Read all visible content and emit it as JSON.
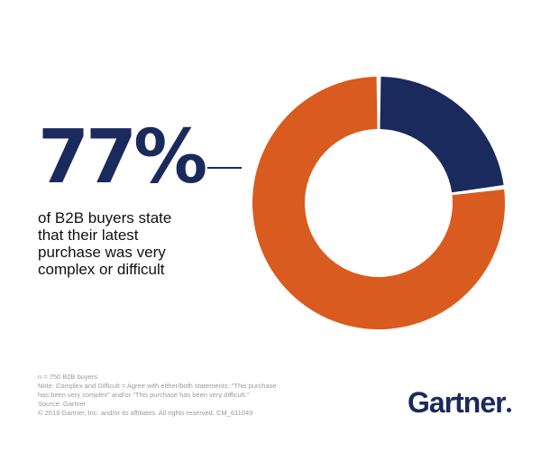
{
  "stat": {
    "value": "77%",
    "caption_lines": [
      "of B2B buyers state",
      "that their latest",
      "purchase was very",
      "complex or difficult"
    ]
  },
  "chart_data": {
    "type": "pie",
    "style": "donut",
    "slices": [
      {
        "label": "very complex or difficult",
        "value": 77,
        "color": "#d95b1f"
      },
      {
        "label": "",
        "value": 23,
        "color": "#1b2a5c"
      }
    ]
  },
  "footnotes": [
    "n = 750 B2B buyers",
    "Note: Complex and Difficult = Agree with either/both statements: \"This purchase",
    "has been very complex\" and/or \"This purchase has been very difficult.\"",
    "Source: Gartner",
    "© 2019 Gartner, Inc. and/or its affiliates. All rights reserved. CM_611049"
  ],
  "logo": {
    "text": "Gartner"
  },
  "colors": {
    "navy": "#1b2a5c",
    "orange": "#d95b1f"
  }
}
